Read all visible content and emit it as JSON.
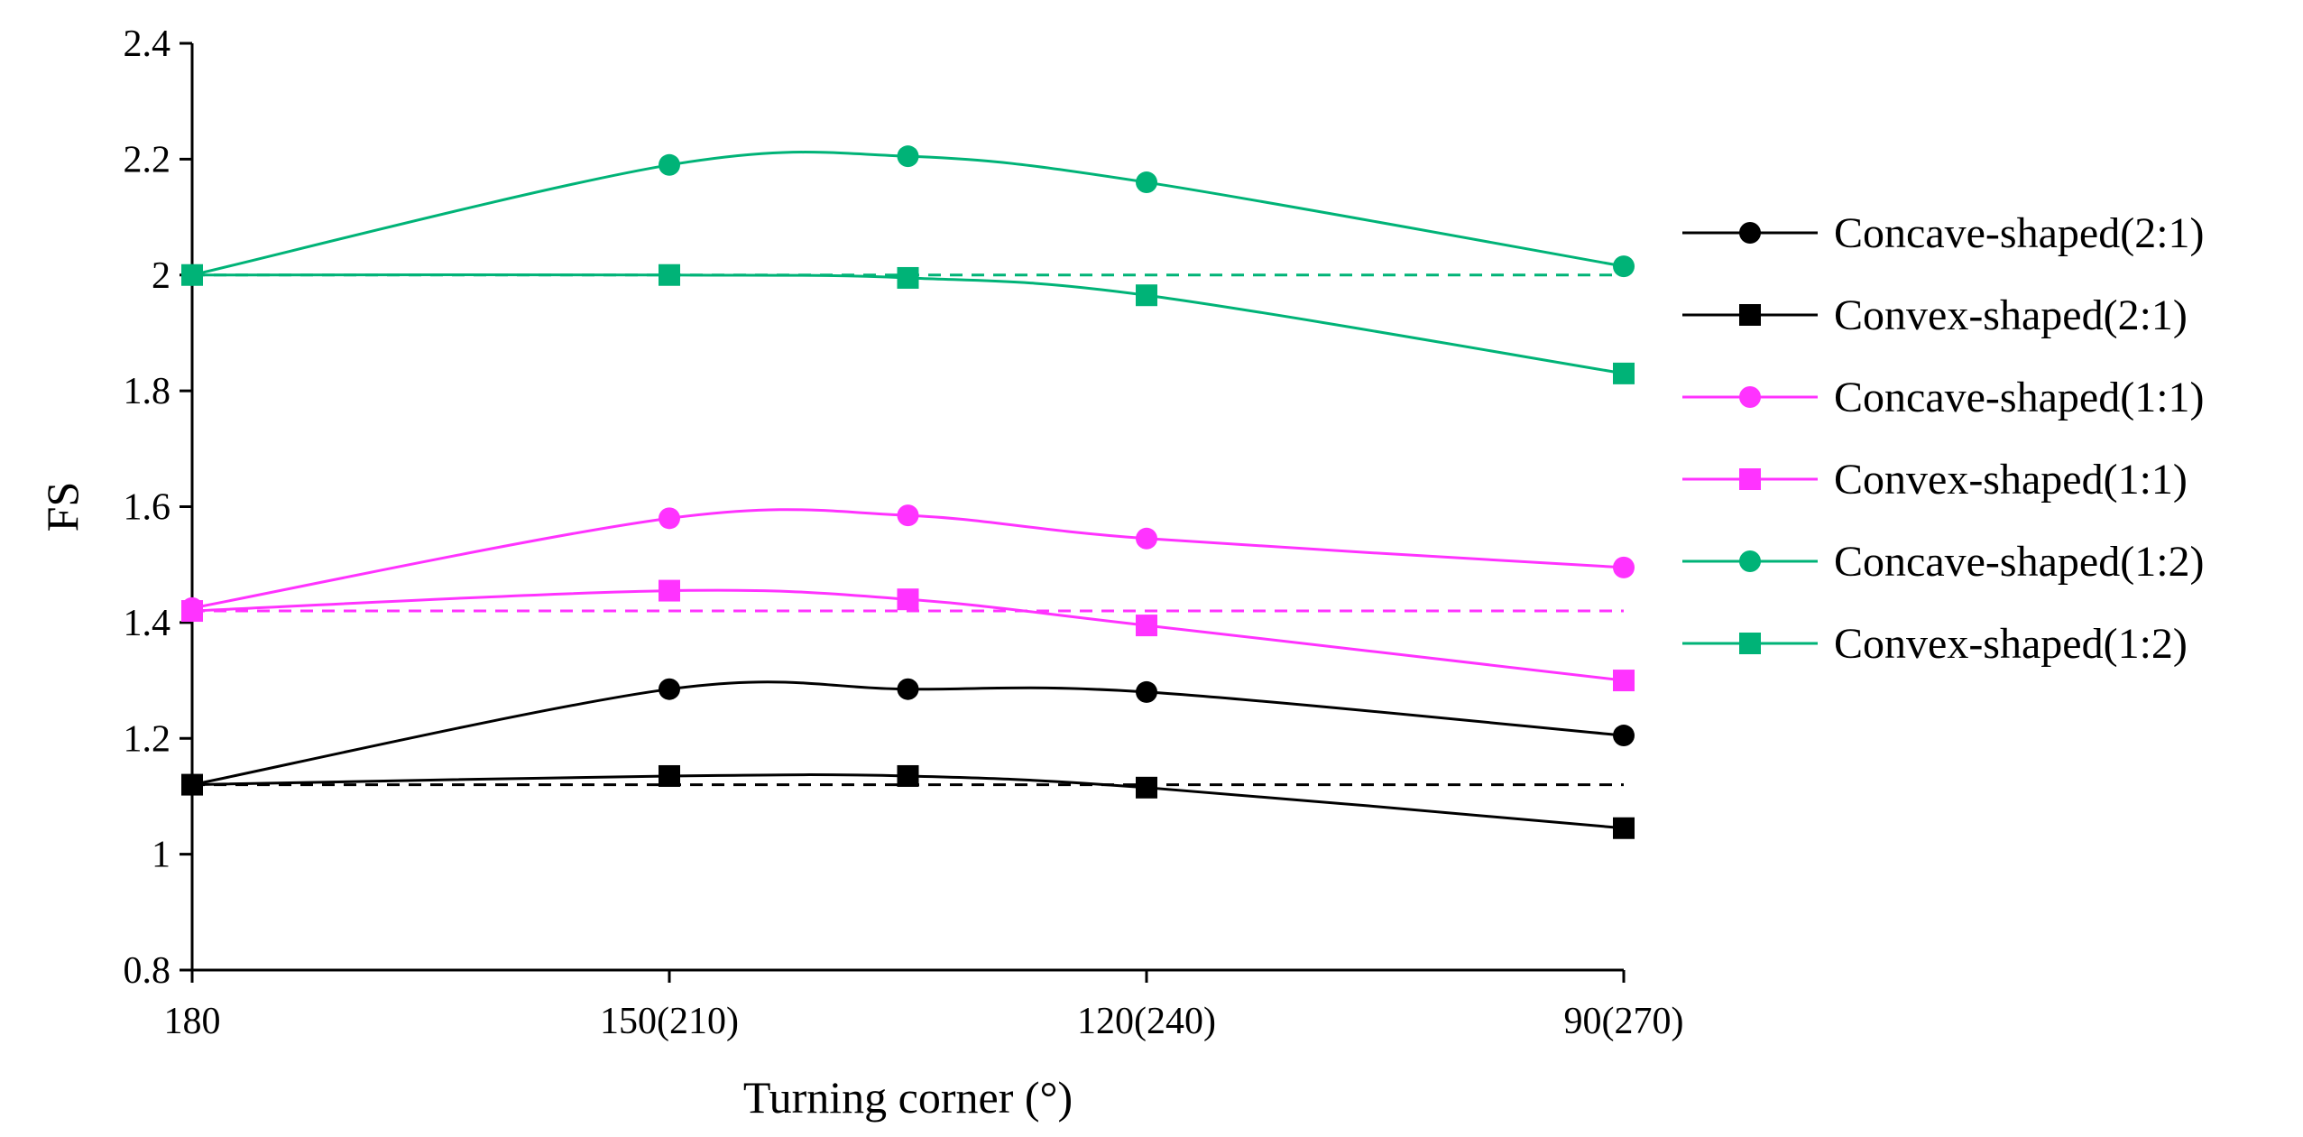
{
  "chart_data": {
    "type": "line",
    "title": "",
    "xlabel": "Turning corner (°)",
    "ylabel": "FS",
    "ylim": [
      0.8,
      2.4
    ],
    "ytick_step": 0.2,
    "yticks": [
      "0.8",
      "1",
      "1.2",
      "1.4",
      "1.6",
      "1.8",
      "2",
      "2.2",
      "2.4"
    ],
    "x_range": [
      0,
      6
    ],
    "x": [
      0,
      2,
      3,
      4,
      6
    ],
    "x_tick_positions": [
      0,
      2,
      4,
      6
    ],
    "x_tick_labels": [
      "180",
      "150(210)",
      "120(240)",
      "90(270)"
    ],
    "grid": false,
    "legend_position": "right",
    "series": [
      {
        "name": "Concave-shaped(2:1)",
        "color": "#000000",
        "marker": "circle",
        "values": [
          1.12,
          1.285,
          1.285,
          1.28,
          1.205
        ]
      },
      {
        "name": "Convex-shaped(2:1)",
        "color": "#000000",
        "marker": "square",
        "values": [
          1.12,
          1.135,
          1.135,
          1.115,
          1.045
        ]
      },
      {
        "name": "Concave-shaped(1:1)",
        "color": "#ff33ff",
        "marker": "circle",
        "values": [
          1.425,
          1.58,
          1.585,
          1.545,
          1.495
        ]
      },
      {
        "name": "Convex-shaped(1:1)",
        "color": "#ff33ff",
        "marker": "square",
        "values": [
          1.42,
          1.455,
          1.44,
          1.395,
          1.3
        ]
      },
      {
        "name": "Concave-shaped(1:2)",
        "color": "#00b377",
        "marker": "circle",
        "values": [
          2.0,
          2.19,
          2.205,
          2.16,
          2.015
        ]
      },
      {
        "name": "Convex-shaped(1:2)",
        "color": "#00b377",
        "marker": "square",
        "values": [
          2.0,
          2.0,
          1.995,
          1.965,
          1.83
        ]
      }
    ],
    "reference_lines": [
      {
        "name": "reference-2-1",
        "color": "#000000",
        "y": 1.12
      },
      {
        "name": "reference-1-1",
        "color": "#ff33ff",
        "y": 1.42
      },
      {
        "name": "reference-1-2",
        "color": "#00b377",
        "y": 2.0
      }
    ]
  }
}
